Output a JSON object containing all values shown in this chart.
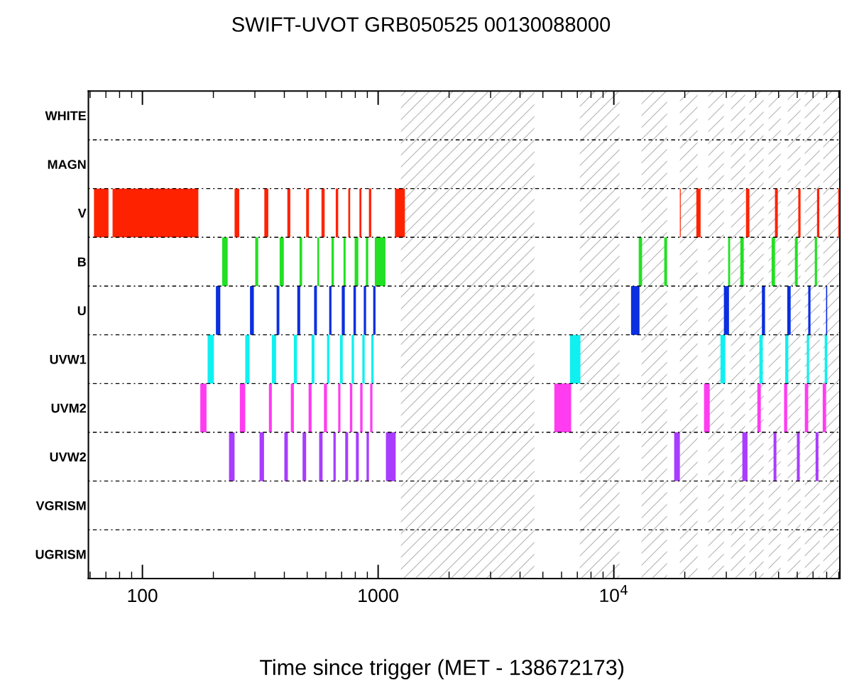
{
  "chart_data": {
    "type": "bar",
    "orientation": "horizontal",
    "title": "SWIFT-UVOT GRB050525 00130088000",
    "xlabel": "Time since trigger (MET - 138672173)",
    "categories": [
      "WHITE",
      "MAGN",
      "V",
      "B",
      "U",
      "UVW1",
      "UVM2",
      "UVW2",
      "VGRISM",
      "UGRISM"
    ],
    "log": "x",
    "xlim": [
      59,
      91000
    ],
    "xticks": [
      100,
      1000,
      {
        "value": 10000,
        "label": "10$^{4}$"
      }
    ],
    "grid": "y",
    "bands": [
      {
        "axis": "x",
        "from": 1249,
        "to": 4599,
        "color": "#b4b4b4"
      },
      {
        "axis": "x",
        "from": 7170,
        "to": 10570,
        "color": "#b4b4b4"
      },
      {
        "axis": "x",
        "from": 13110,
        "to": 16820,
        "color": "#b4b4b4"
      },
      {
        "axis": "x",
        "from": 19060,
        "to": 22670,
        "color": "#b4b4b4"
      },
      {
        "axis": "x",
        "from": 25160,
        "to": 29300,
        "color": "#b4b4b4"
      },
      {
        "axis": "x",
        "from": 31400,
        "to": 36080,
        "color": "#b4b4b4"
      },
      {
        "axis": "x",
        "from": 37600,
        "to": 43210,
        "color": "#b4b4b4"
      },
      {
        "axis": "x",
        "from": 45360,
        "to": 51060,
        "color": "#b4b4b4"
      },
      {
        "axis": "x",
        "from": 54690,
        "to": 61960,
        "color": "#b4b4b4"
      },
      {
        "axis": "x",
        "from": 64600,
        "to": 74710,
        "color": "#b4b4b4"
      },
      {
        "axis": "x",
        "from": 77370,
        "to": 91000,
        "color": "#b4b4b4"
      }
    ],
    "series": [
      {
        "base": [
          null,
          null,
          62.3,
          218,
          205,
          189,
          176,
          233,
          null,
          null
        ],
        "values": [
          null,
          null,
          9.5,
          12,
          9,
          12,
          11,
          13,
          null,
          null
        ],
        "colors": [
          null,
          null,
          "#ff2200",
          "#22e022",
          "#0a2ee0",
          "#10f0f0",
          "#ff3cf0",
          "#a83cff",
          null,
          null
        ]
      },
      {
        "base": [
          null,
          null,
          74.7,
          301,
          286,
          273,
          259,
          314,
          null,
          null
        ],
        "values": [
          null,
          null,
          98,
          9,
          11,
          12,
          14,
          14,
          null,
          null
        ],
        "colors": [
          null,
          null,
          "#ff2200",
          "#22e022",
          "#0a2ee0",
          "#10f0f0",
          "#ff3cf0",
          "#a83cff",
          null,
          null
        ]
      },
      {
        "base": [
          null,
          null,
          246,
          382,
          371,
          354,
          344,
          400,
          null,
          null
        ],
        "values": [
          null,
          null,
          11.6,
          16,
          10,
          15,
          10,
          14,
          null,
          null
        ],
        "colors": [
          null,
          null,
          "#ff2200",
          "#22e022",
          "#0a2ee0",
          "#10f0f0",
          "#ff3cf0",
          "#a83cff",
          null,
          null
        ]
      },
      {
        "base": [
          null,
          null,
          329,
          464,
          454,
          439,
          426,
          478,
          null,
          null
        ],
        "values": [
          null,
          null,
          13,
          12,
          13,
          14,
          13,
          17,
          null,
          null
        ],
        "colors": [
          null,
          null,
          "#ff2200",
          "#22e022",
          "#0a2ee0",
          "#10f0f0",
          "#ff3cf0",
          "#a83cff",
          null,
          null
        ]
      },
      {
        "base": [
          null,
          null,
          412,
          552,
          535,
          522,
          507,
          562,
          null,
          null
        ],
        "values": [
          null,
          null,
          12,
          10,
          15,
          15,
          15,
          19,
          null,
          null
        ],
        "colors": [
          null,
          null,
          "#ff2200",
          "#22e022",
          "#0a2ee0",
          "#10f0f0",
          "#ff3cf0",
          "#a83cff",
          null,
          null
        ]
      },
      {
        "base": [
          null,
          null,
          495,
          634,
          620,
          607,
          589,
          646,
          null,
          null
        ],
        "values": [
          null,
          null,
          14,
          15,
          14,
          14,
          18,
          15,
          null,
          null
        ],
        "colors": [
          null,
          null,
          "#ff2200",
          "#22e022",
          "#0a2ee0",
          "#10f0f0",
          "#ff3cf0",
          "#a83cff",
          null,
          null
        ]
      },
      {
        "base": [
          null,
          null,
          575,
          713,
          701,
          689,
          677,
          725,
          null,
          null
        ],
        "values": [
          null,
          null,
          18,
          15,
          21,
          19,
          15,
          21,
          null,
          null
        ],
        "colors": [
          null,
          null,
          "#ff2200",
          "#22e022",
          "#0a2ee0",
          "#10f0f0",
          "#ff3cf0",
          "#a83cff",
          null,
          null
        ]
      },
      {
        "base": [
          null,
          null,
          661,
          795,
          786,
          772,
          759,
          805,
          null,
          null
        ],
        "values": [
          null,
          null,
          16,
          29,
          19,
          18,
          18,
          23,
          null,
          null
        ],
        "colors": [
          null,
          null,
          "#ff2200",
          "#22e022",
          "#0a2ee0",
          "#10f0f0",
          "#ff3cf0",
          "#a83cff",
          null,
          null
        ]
      },
      {
        "base": [
          null,
          null,
          747,
          887,
          869,
          857,
          839,
          893,
          null,
          null
        ],
        "values": [
          null,
          null,
          14,
          21,
          20,
          20,
          20,
          21,
          null,
          null
        ],
        "colors": [
          null,
          null,
          "#ff2200",
          "#22e022",
          "#0a2ee0",
          "#10f0f0",
          "#ff3cf0",
          "#a83cff",
          null,
          null
        ]
      },
      {
        "base": [
          null,
          null,
          833,
          968,
          953,
          935,
          925,
          1079,
          null,
          null
        ],
        "values": [
          null,
          null,
          16,
          106,
          22,
          22,
          21,
          108,
          null,
          null
        ],
        "colors": [
          null,
          null,
          "#ff2200",
          "#22e022",
          "#0a2ee0",
          "#10f0f0",
          "#ff3cf0",
          "#a83cff",
          null,
          null
        ]
      },
      {
        "base": [
          null,
          null,
          914,
          12750,
          11830,
          6516,
          5591,
          18030,
          null,
          null
        ],
        "values": [
          null,
          null,
          21,
          430,
          1020,
          700,
          1000,
          1030,
          null,
          null
        ],
        "colors": [
          null,
          null,
          "#ff2200",
          "#22e022",
          "#0a2ee0",
          "#10f0f0",
          "#ff3cf0",
          "#a83cff",
          null,
          null
        ]
      },
      {
        "base": [
          null,
          null,
          1179,
          16360,
          29300,
          28340,
          24130,
          35090,
          null,
          null
        ],
        "values": [
          null,
          null,
          120,
          460,
          1500,
          1370,
          1380,
          1810,
          null,
          null
        ],
        "colors": [
          null,
          null,
          "#ff2200",
          "#22e022",
          "#0a2ee0",
          "#10f0f0",
          "#ff3cf0",
          "#a83cff",
          null,
          null
        ]
      },
      {
        "base": [
          null,
          null,
          19060,
          30540,
          42480,
          41440,
          40640,
          47610,
          null,
          null
        ],
        "values": [
          null,
          null,
          160,
          600,
          1320,
          1400,
          1380,
          1330,
          null,
          null
        ],
        "colors": [
          null,
          null,
          "#ff2200",
          "#22e022",
          "#0a2ee0",
          "#10f0f0",
          "#ff3cf0",
          "#a83cff",
          null,
          null
        ]
      },
      {
        "base": [
          null,
          null,
          22390,
          34400,
          54410,
          53340,
          52760,
          59780,
          null,
          null
        ],
        "values": [
          null,
          null,
          950,
          1170,
          1850,
          1660,
          1630,
          1680,
          null,
          null
        ],
        "colors": [
          null,
          null,
          "#ff2200",
          "#22e022",
          "#0a2ee0",
          "#10f0f0",
          "#ff3cf0",
          "#a83cff",
          null,
          null
        ]
      },
      {
        "base": [
          null,
          null,
          36360,
          46700,
          66790,
          65870,
          64600,
          71780,
          null,
          null
        ],
        "values": [
          null,
          null,
          1240,
          1580,
          1500,
          1480,
          2190,
          2020,
          null,
          null
        ],
        "colors": [
          null,
          null,
          "#ff2200",
          "#22e022",
          "#0a2ee0",
          "#10f0f0",
          "#ff3cf0",
          "#a83cff",
          null,
          null
        ]
      },
      {
        "base": [
          null,
          null,
          48260,
          58630,
          79500,
          78440,
          76940,
          null,
          null,
          null
        ],
        "values": [
          null,
          null,
          1360,
          1650,
          890,
          1960,
          2600,
          null,
          null,
          null
        ],
        "colors": [
          null,
          null,
          "#ff2200",
          "#22e022",
          "#0a2ee0",
          "#10f0f0",
          "#ff3cf0",
          null,
          null,
          null
        ]
      },
      {
        "base": [
          null,
          null,
          60600,
          71190,
          null,
          null,
          null,
          null,
          null,
          null
        ],
        "values": [
          null,
          null,
          1360,
          1600,
          null,
          null,
          null,
          null,
          null,
          null
        ],
        "colors": [
          null,
          null,
          "#ff2200",
          "#22e022",
          null,
          null,
          null,
          null,
          null,
          null
        ]
      },
      {
        "base": [
          null,
          null,
          72770,
          null,
          null,
          null,
          null,
          null,
          null,
          null
        ],
        "values": [
          null,
          null,
          1630,
          null,
          null,
          null,
          null,
          null,
          null,
          null
        ],
        "colors": [
          null,
          null,
          "#ff2200",
          null,
          null,
          null,
          null,
          null,
          null,
          null
        ]
      },
      {
        "base": [
          null,
          null,
          89530,
          null,
          null,
          null,
          null,
          null,
          null,
          null
        ],
        "values": [
          null,
          null,
          1200,
          null,
          null,
          null,
          null,
          null,
          null,
          null
        ],
        "colors": [
          null,
          null,
          "#ff2200",
          null,
          null,
          null,
          null,
          null,
          null,
          null
        ]
      }
    ]
  }
}
